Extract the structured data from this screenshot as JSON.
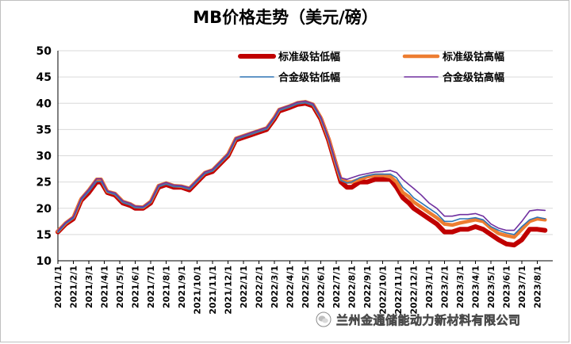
{
  "chart_data": {
    "type": "line",
    "title": "MB价格走势（美元/磅）",
    "xlabel": "",
    "ylabel": "",
    "ylim": [
      10,
      50
    ],
    "yticks": [
      10,
      15,
      20,
      25,
      30,
      35,
      40,
      45,
      50
    ],
    "grid": true,
    "legend_position": "top-right",
    "x_start": "2021-01-01",
    "x_end": "2023-08-31",
    "categories": [
      "2021/1/1",
      "2021/2/1",
      "2021/3/1",
      "2021/4/1",
      "2021/5/1",
      "2021/6/1",
      "2021/7/1",
      "2021/8/1",
      "2021/9/1",
      "2021/10/1",
      "2021/11/1",
      "2021/12/1",
      "2022/1/1",
      "2022/2/1",
      "2022/3/1",
      "2022/4/1",
      "2022/5/1",
      "2022/6/1",
      "2022/7/1",
      "2022/8/1",
      "2022/9/1",
      "2022/10/1",
      "2022/11/1",
      "2022/12/1",
      "2023/1/1",
      "2023/2/1",
      "2023/3/1",
      "2023/4/1",
      "2023/5/1",
      "2023/6/1",
      "2023/7/1",
      "2023/8/1"
    ],
    "series": [
      {
        "name": "标准级钴低幅",
        "color": "#c00000",
        "values": [
          [
            0,
            15.5
          ],
          [
            0.5,
            17
          ],
          [
            1,
            18
          ],
          [
            1.5,
            21.5
          ],
          [
            2,
            23
          ],
          [
            2.5,
            25
          ],
          [
            2.8,
            25
          ],
          [
            3.2,
            23
          ],
          [
            3.7,
            22.5
          ],
          [
            4.2,
            21
          ],
          [
            4.7,
            20.5
          ],
          [
            5,
            20
          ],
          [
            5.5,
            20
          ],
          [
            6,
            21
          ],
          [
            6.5,
            24
          ],
          [
            7,
            24.5
          ],
          [
            7.5,
            24
          ],
          [
            8,
            24
          ],
          [
            8.5,
            23.5
          ],
          [
            9,
            25
          ],
          [
            9.5,
            26.5
          ],
          [
            10,
            27
          ],
          [
            10.5,
            28.5
          ],
          [
            11,
            30
          ],
          [
            11.5,
            33
          ],
          [
            12,
            33.5
          ],
          [
            12.5,
            34
          ],
          [
            13,
            34.5
          ],
          [
            13.5,
            35
          ],
          [
            14,
            37
          ],
          [
            14.3,
            38.5
          ],
          [
            15,
            39.2
          ],
          [
            15.5,
            39.8
          ],
          [
            16,
            40
          ],
          [
            16.5,
            39.5
          ],
          [
            17,
            37
          ],
          [
            17.5,
            33
          ],
          [
            18,
            28
          ],
          [
            18.3,
            25
          ],
          [
            18.7,
            24
          ],
          [
            19,
            24
          ],
          [
            19.5,
            25
          ],
          [
            20,
            25
          ],
          [
            20.5,
            25.5
          ],
          [
            21,
            25.5
          ],
          [
            21.5,
            25.5
          ],
          [
            21.9,
            24
          ],
          [
            22.3,
            22
          ],
          [
            22.7,
            21
          ],
          [
            23,
            20
          ],
          [
            23.5,
            19
          ],
          [
            24,
            18
          ],
          [
            24.5,
            17
          ],
          [
            25,
            15.5
          ],
          [
            25.5,
            15.5
          ],
          [
            26,
            16
          ],
          [
            26.5,
            16
          ],
          [
            27,
            16.5
          ],
          [
            27.5,
            16
          ],
          [
            28,
            15
          ],
          [
            28.5,
            14
          ],
          [
            29,
            13.2
          ],
          [
            29.5,
            13
          ],
          [
            30,
            14
          ],
          [
            30.5,
            16
          ],
          [
            31,
            16
          ],
          [
            31.5,
            15.8
          ]
        ]
      },
      {
        "name": "标准级钴高幅",
        "color": "#ed7d31",
        "values": [
          [
            0,
            15.6
          ],
          [
            0.5,
            17.2
          ],
          [
            1,
            18.3
          ],
          [
            1.5,
            21.8
          ],
          [
            2,
            23.5
          ],
          [
            2.5,
            25.5
          ],
          [
            2.8,
            25.5
          ],
          [
            3.2,
            23.2
          ],
          [
            3.7,
            22.8
          ],
          [
            4.2,
            21.3
          ],
          [
            4.7,
            20.8
          ],
          [
            5,
            20.3
          ],
          [
            5.5,
            20.2
          ],
          [
            6,
            21.3
          ],
          [
            6.5,
            24.3
          ],
          [
            7,
            24.8
          ],
          [
            7.5,
            24.3
          ],
          [
            8,
            24.2
          ],
          [
            8.5,
            23.8
          ],
          [
            9,
            25.3
          ],
          [
            9.5,
            26.8
          ],
          [
            10,
            27.3
          ],
          [
            10.5,
            28.8
          ],
          [
            11,
            30.3
          ],
          [
            11.5,
            33.3
          ],
          [
            12,
            33.8
          ],
          [
            12.5,
            34.3
          ],
          [
            13,
            34.8
          ],
          [
            13.5,
            35.3
          ],
          [
            14,
            37.3
          ],
          [
            14.3,
            38.8
          ],
          [
            15,
            39.5
          ],
          [
            15.5,
            40.1
          ],
          [
            16,
            40.3
          ],
          [
            16.5,
            39.8
          ],
          [
            17,
            37.3
          ],
          [
            17.5,
            33.3
          ],
          [
            18,
            28.3
          ],
          [
            18.3,
            25.5
          ],
          [
            18.7,
            25
          ],
          [
            19,
            25
          ],
          [
            19.5,
            25.5
          ],
          [
            20,
            26
          ],
          [
            20.5,
            26.3
          ],
          [
            21,
            26.3
          ],
          [
            21.5,
            26
          ],
          [
            21.9,
            25
          ],
          [
            22.3,
            23
          ],
          [
            22.7,
            22.2
          ],
          [
            23,
            21.2
          ],
          [
            23.5,
            20.2
          ],
          [
            24,
            19.2
          ],
          [
            24.5,
            18.2
          ],
          [
            25,
            17
          ],
          [
            25.5,
            16.8
          ],
          [
            26,
            17.2
          ],
          [
            26.5,
            17.5
          ],
          [
            27,
            17.8
          ],
          [
            27.5,
            17.5
          ],
          [
            28,
            16.2
          ],
          [
            28.5,
            15.2
          ],
          [
            29,
            14.8
          ],
          [
            29.5,
            14.5
          ],
          [
            30,
            16
          ],
          [
            30.5,
            17.5
          ],
          [
            31,
            18
          ],
          [
            31.5,
            17.8
          ]
        ]
      },
      {
        "name": "合金级钴低幅",
        "color": "#2e75b6",
        "values": [
          [
            0,
            15.4
          ],
          [
            0.5,
            17.1
          ],
          [
            1,
            18.1
          ],
          [
            1.5,
            21.6
          ],
          [
            2,
            23.2
          ],
          [
            2.5,
            25.1
          ],
          [
            2.8,
            25.1
          ],
          [
            3.2,
            23.1
          ],
          [
            3.7,
            22.6
          ],
          [
            4.2,
            21.1
          ],
          [
            4.7,
            20.6
          ],
          [
            5,
            20.1
          ],
          [
            5.5,
            20.1
          ],
          [
            6,
            21.1
          ],
          [
            6.5,
            24.1
          ],
          [
            7,
            24.6
          ],
          [
            7.5,
            24.1
          ],
          [
            8,
            24.1
          ],
          [
            8.5,
            23.6
          ],
          [
            9,
            25.1
          ],
          [
            9.5,
            26.6
          ],
          [
            10,
            27.1
          ],
          [
            10.5,
            28.6
          ],
          [
            11,
            30.1
          ],
          [
            11.5,
            33.1
          ],
          [
            12,
            33.6
          ],
          [
            12.5,
            34.1
          ],
          [
            13,
            34.6
          ],
          [
            13.5,
            35.1
          ],
          [
            14,
            37.1
          ],
          [
            14.3,
            38.6
          ],
          [
            15,
            39.3
          ],
          [
            15.5,
            39.9
          ],
          [
            16,
            40.1
          ],
          [
            16.5,
            39.6
          ],
          [
            17,
            37.1
          ],
          [
            17.5,
            33.1
          ],
          [
            18,
            28.1
          ],
          [
            18.3,
            25.3
          ],
          [
            18.7,
            24.8
          ],
          [
            19,
            25
          ],
          [
            19.5,
            25.8
          ],
          [
            20,
            26.2
          ],
          [
            20.5,
            26.5
          ],
          [
            21,
            26.5
          ],
          [
            21.5,
            26.5
          ],
          [
            21.9,
            25.8
          ],
          [
            22.3,
            24
          ],
          [
            22.7,
            23
          ],
          [
            23,
            22
          ],
          [
            23.5,
            21
          ],
          [
            24,
            20
          ],
          [
            24.5,
            19
          ],
          [
            25,
            17.5
          ],
          [
            25.5,
            17.5
          ],
          [
            26,
            18
          ],
          [
            26.5,
            18
          ],
          [
            27,
            18.2
          ],
          [
            27.5,
            17.8
          ],
          [
            28,
            16.5
          ],
          [
            28.5,
            15.8
          ],
          [
            29,
            15.3
          ],
          [
            29.5,
            15
          ],
          [
            30,
            16.5
          ],
          [
            30.5,
            17.8
          ],
          [
            31,
            18.3
          ],
          [
            31.5,
            18
          ]
        ]
      },
      {
        "name": "合金级钴高幅",
        "color": "#7030a0",
        "values": [
          [
            0,
            15.7
          ],
          [
            0.5,
            17.3
          ],
          [
            1,
            18.4
          ],
          [
            1.5,
            21.9
          ],
          [
            2,
            23.6
          ],
          [
            2.5,
            25.6
          ],
          [
            2.8,
            25.6
          ],
          [
            3.2,
            23.3
          ],
          [
            3.7,
            22.9
          ],
          [
            4.2,
            21.4
          ],
          [
            4.7,
            20.9
          ],
          [
            5,
            20.4
          ],
          [
            5.5,
            20.3
          ],
          [
            6,
            21.4
          ],
          [
            6.5,
            24.4
          ],
          [
            7,
            24.9
          ],
          [
            7.5,
            24.4
          ],
          [
            8,
            24.3
          ],
          [
            8.5,
            23.9
          ],
          [
            9,
            25.4
          ],
          [
            9.5,
            26.9
          ],
          [
            10,
            27.4
          ],
          [
            10.5,
            28.9
          ],
          [
            11,
            30.4
          ],
          [
            11.5,
            33.4
          ],
          [
            12,
            33.9
          ],
          [
            12.5,
            34.4
          ],
          [
            13,
            34.9
          ],
          [
            13.5,
            35.4
          ],
          [
            14,
            37.4
          ],
          [
            14.3,
            38.9
          ],
          [
            15,
            39.6
          ],
          [
            15.5,
            40.2
          ],
          [
            16,
            40.4
          ],
          [
            16.5,
            39.9
          ],
          [
            17,
            37.4
          ],
          [
            17.5,
            33.4
          ],
          [
            18,
            28.4
          ],
          [
            18.3,
            25.8
          ],
          [
            18.7,
            25.5
          ],
          [
            19,
            25.8
          ],
          [
            19.5,
            26.3
          ],
          [
            20,
            26.6
          ],
          [
            20.5,
            26.9
          ],
          [
            21,
            27
          ],
          [
            21.5,
            27.2
          ],
          [
            21.9,
            26.8
          ],
          [
            22.3,
            25.5
          ],
          [
            22.7,
            24.5
          ],
          [
            23,
            23.8
          ],
          [
            23.5,
            22.5
          ],
          [
            24,
            21
          ],
          [
            24.5,
            20
          ],
          [
            25,
            18.5
          ],
          [
            25.5,
            18.5
          ],
          [
            26,
            18.8
          ],
          [
            26.5,
            18.8
          ],
          [
            27,
            19
          ],
          [
            27.5,
            18.5
          ],
          [
            28,
            17
          ],
          [
            28.5,
            16.2
          ],
          [
            29,
            15.8
          ],
          [
            29.5,
            15.8
          ],
          [
            30,
            17.5
          ],
          [
            30.5,
            19.5
          ],
          [
            31,
            19.7
          ],
          [
            31.5,
            19.6
          ]
        ]
      }
    ]
  },
  "watermark": {
    "text": "兰州金通储能动力新材料有限公司",
    "icon": "wechat-icon"
  }
}
